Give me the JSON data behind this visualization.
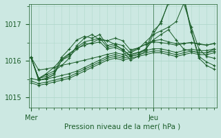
{
  "xlabel": "Pression niveau de la mer( hPa )",
  "bg_color": "#cce8e2",
  "grid_color": "#b0d8cc",
  "line_color": "#1a5c28",
  "marker": "+",
  "yticks": [
    1015,
    1016,
    1017
  ],
  "ylim": [
    1014.72,
    1017.55
  ],
  "xtick_labels": [
    "Mer",
    "Jeu"
  ],
  "xtick_positions": [
    0,
    16
  ],
  "xlim": [
    -0.3,
    24.3
  ],
  "n_points": 25,
  "series": [
    [
      1016.1,
      1015.75,
      1015.78,
      1015.82,
      1015.88,
      1015.92,
      1015.97,
      1016.02,
      1016.07,
      1016.12,
      1016.18,
      1016.22,
      1016.18,
      1016.25,
      1016.35,
      1016.45,
      1016.52,
      1016.5,
      1016.47,
      1016.43,
      1016.47,
      1016.5,
      1016.47,
      1016.43,
      1016.47
    ],
    [
      1015.52,
      1015.47,
      1015.5,
      1015.55,
      1015.6,
      1015.65,
      1015.72,
      1015.82,
      1015.92,
      1016.02,
      1016.12,
      1016.17,
      1016.12,
      1016.18,
      1016.23,
      1016.28,
      1016.33,
      1016.33,
      1016.28,
      1016.23,
      1016.28,
      1016.32,
      1016.28,
      1016.28,
      1016.33
    ],
    [
      1015.45,
      1015.38,
      1015.42,
      1015.47,
      1015.52,
      1015.57,
      1015.67,
      1015.77,
      1015.87,
      1015.97,
      1016.07,
      1016.12,
      1016.07,
      1016.12,
      1016.17,
      1016.22,
      1016.27,
      1016.27,
      1016.22,
      1016.17,
      1016.22,
      1016.27,
      1016.22,
      1016.22,
      1016.27
    ],
    [
      1015.4,
      1015.33,
      1015.37,
      1015.42,
      1015.47,
      1015.52,
      1015.62,
      1015.72,
      1015.82,
      1015.92,
      1016.02,
      1016.07,
      1016.02,
      1016.07,
      1016.12,
      1016.17,
      1016.22,
      1016.22,
      1016.17,
      1016.12,
      1016.17,
      1016.22,
      1016.17,
      1016.17,
      1016.22
    ],
    [
      1016.08,
      1015.52,
      1015.65,
      1015.82,
      1016.05,
      1016.2,
      1016.35,
      1016.42,
      1016.5,
      1016.6,
      1016.55,
      1016.62,
      1016.55,
      1016.3,
      1016.35,
      1016.45,
      1016.55,
      1016.58,
      1016.52,
      1016.47,
      1016.48,
      1016.5,
      1016.45,
      1016.43,
      1016.48
    ],
    [
      1016.1,
      1015.52,
      1015.62,
      1015.72,
      1015.87,
      1016.07,
      1016.42,
      1016.62,
      1016.72,
      1016.57,
      1016.55,
      1016.45,
      1016.3,
      1016.15,
      1016.22,
      1016.32,
      1016.57,
      1016.72,
      1016.85,
      1016.57,
      1016.32,
      1016.27,
      1016.22,
      1016.22,
      1016.32
    ],
    [
      1016.1,
      1015.52,
      1015.57,
      1015.67,
      1016.1,
      1016.32,
      1016.57,
      1016.67,
      1016.62,
      1016.72,
      1016.42,
      1016.47,
      1016.42,
      1016.22,
      1016.32,
      1016.52,
      1016.72,
      1016.82,
      1016.92,
      1017.07,
      1017.57,
      1016.92,
      1016.32,
      1016.12,
      1016.07
    ],
    [
      1016.1,
      1015.47,
      1015.52,
      1015.62,
      1016.02,
      1016.17,
      1016.37,
      1016.52,
      1016.57,
      1016.62,
      1016.37,
      1016.42,
      1016.32,
      1016.12,
      1016.17,
      1016.32,
      1016.82,
      1017.02,
      1017.62,
      1017.87,
      1017.77,
      1016.82,
      1016.12,
      1015.97,
      1015.87
    ],
    [
      1016.1,
      1015.47,
      1015.52,
      1015.62,
      1016.02,
      1016.12,
      1016.32,
      1016.47,
      1016.47,
      1016.52,
      1016.32,
      1016.37,
      1016.27,
      1016.02,
      1016.12,
      1016.27,
      1016.72,
      1017.07,
      1017.57,
      1017.77,
      1017.72,
      1016.77,
      1016.07,
      1015.87,
      1015.77
    ]
  ]
}
